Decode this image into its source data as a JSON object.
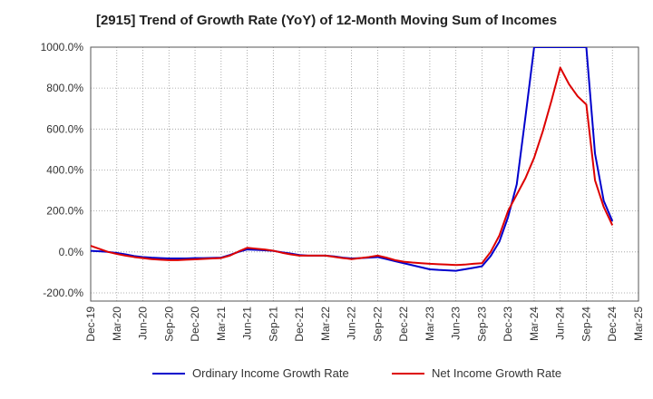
{
  "chart_data": {
    "type": "line",
    "title": "[2915]  Trend of Growth Rate (YoY) of 12-Month Moving Sum of Incomes",
    "xlabel": "",
    "ylabel": "",
    "ylim": [
      -240,
      1000
    ],
    "visible_ylim": [
      -200,
      1000
    ],
    "y_ticks": [
      1000,
      800,
      600,
      400,
      200,
      0,
      -200
    ],
    "y_tick_labels": [
      "1000.0%",
      "800.0%",
      "600.0%",
      "400.0%",
      "200.0%",
      "0.0%",
      "-200.0%"
    ],
    "x_tick_labels": [
      "Dec-19",
      "Mar-20",
      "Jun-20",
      "Sep-20",
      "Dec-20",
      "Mar-21",
      "Jun-21",
      "Sep-21",
      "Dec-21",
      "Mar-22",
      "Jun-22",
      "Sep-22",
      "Dec-22",
      "Mar-23",
      "Jun-23",
      "Sep-23",
      "Dec-23",
      "Mar-24",
      "Jun-24",
      "Sep-24",
      "Dec-24",
      "Mar-25"
    ],
    "grid": true,
    "legend_position": "bottom",
    "x": [
      "Dec-19",
      "Jan-20",
      "Feb-20",
      "Mar-20",
      "Apr-20",
      "May-20",
      "Jun-20",
      "Jul-20",
      "Aug-20",
      "Sep-20",
      "Oct-20",
      "Nov-20",
      "Dec-20",
      "Jan-21",
      "Feb-21",
      "Mar-21",
      "Apr-21",
      "May-21",
      "Jun-21",
      "Jul-21",
      "Aug-21",
      "Sep-21",
      "Oct-21",
      "Nov-21",
      "Dec-21",
      "Jan-22",
      "Feb-22",
      "Mar-22",
      "Apr-22",
      "May-22",
      "Jun-22",
      "Jul-22",
      "Aug-22",
      "Sep-22",
      "Oct-22",
      "Nov-22",
      "Dec-22",
      "Jan-23",
      "Feb-23",
      "Mar-23",
      "Apr-23",
      "May-23",
      "Jun-23",
      "Jul-23",
      "Aug-23",
      "Sep-23",
      "Oct-23",
      "Nov-23",
      "Dec-23",
      "Jan-24",
      "Feb-24",
      "Mar-24",
      "Apr-24",
      "May-24",
      "Jun-24",
      "Jul-24",
      "Aug-24",
      "Sep-24",
      "Oct-24",
      "Nov-24",
      "Dec-24"
    ],
    "series": [
      {
        "name": "Ordinary Income Growth Rate",
        "color": "#0000cc",
        "values": [
          5,
          3,
          0,
          -5,
          -12,
          -20,
          -25,
          -28,
          -30,
          -32,
          -32,
          -32,
          -30,
          -30,
          -29,
          -28,
          -15,
          0,
          12,
          10,
          8,
          5,
          -2,
          -8,
          -15,
          -18,
          -18,
          -18,
          -22,
          -28,
          -32,
          -30,
          -28,
          -25,
          -35,
          -45,
          -55,
          -65,
          -75,
          -85,
          -88,
          -90,
          -92,
          -85,
          -78,
          -70,
          -20,
          50,
          170,
          330,
          660,
          1000,
          1000,
          1000,
          1000,
          1000,
          1000,
          1000,
          480,
          250,
          150
        ]
      },
      {
        "name": "Net Income Growth Rate",
        "color": "#dd0000",
        "values": [
          30,
          15,
          0,
          -10,
          -18,
          -25,
          -30,
          -35,
          -38,
          -40,
          -40,
          -38,
          -36,
          -34,
          -32,
          -30,
          -18,
          2,
          20,
          16,
          12,
          6,
          -4,
          -12,
          -18,
          -18,
          -18,
          -18,
          -24,
          -30,
          -35,
          -30,
          -25,
          -18,
          -28,
          -40,
          -48,
          -52,
          -55,
          -58,
          -60,
          -62,
          -64,
          -62,
          -58,
          -55,
          0,
          80,
          200,
          280,
          360,
          460,
          590,
          740,
          900,
          820,
          760,
          720,
          350,
          220,
          130
        ]
      }
    ]
  },
  "legend": {
    "series_1": "Ordinary Income Growth Rate",
    "series_2": "Net Income Growth Rate"
  }
}
